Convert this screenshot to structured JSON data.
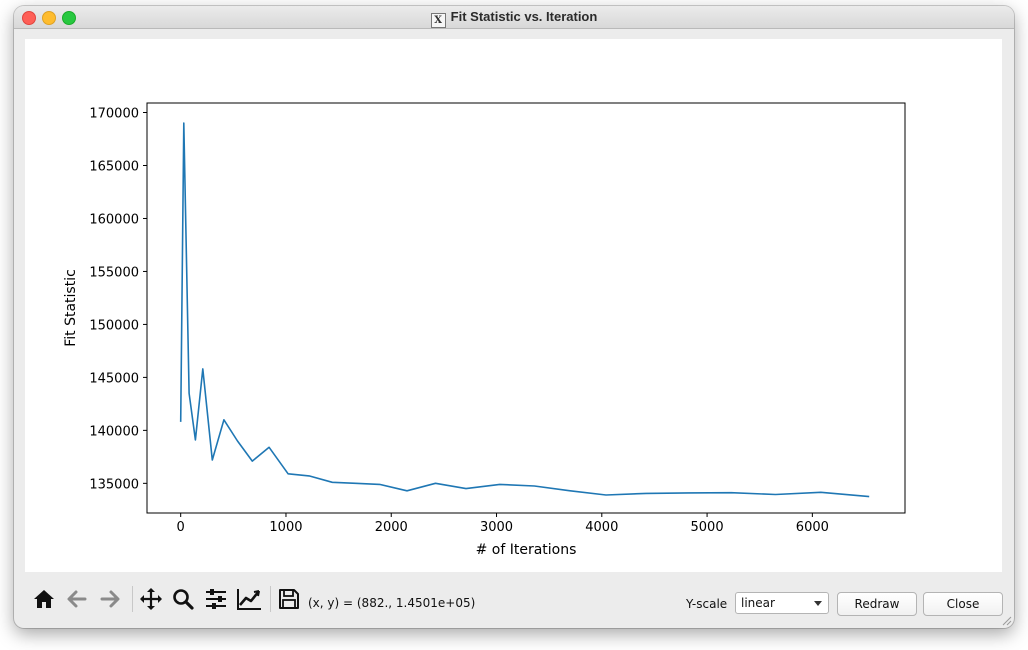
{
  "window": {
    "title": "Fit Statistic vs. Iteration",
    "title_icon": "x11-icon"
  },
  "toolbar": {
    "buttons": [
      {
        "name": "home-button",
        "icon": "home-icon"
      },
      {
        "name": "back-button",
        "icon": "arrow-left-icon"
      },
      {
        "name": "forward-button",
        "icon": "arrow-right-icon"
      },
      {
        "name": "pan-button",
        "icon": "move-icon"
      },
      {
        "name": "zoom-button",
        "icon": "magnifier-icon"
      },
      {
        "name": "subplots-button",
        "icon": "sliders-icon"
      },
      {
        "name": "customize-button",
        "icon": "chart-line-icon"
      },
      {
        "name": "save-button",
        "icon": "floppy-disk-icon"
      }
    ],
    "coords": "(x, y) = (882., 1.4501e+05)",
    "yscale_label": "Y-scale",
    "yscale_value": "linear",
    "redraw_label": "Redraw",
    "close_label": "Close"
  },
  "chart_data": {
    "type": "line",
    "title": "",
    "xlabel": "# of Iterations",
    "ylabel": "Fit Statistic",
    "xlim": [
      -320,
      6880
    ],
    "ylim": [
      132200,
      170900
    ],
    "xticks": [
      0,
      1000,
      2000,
      3000,
      4000,
      5000,
      6000
    ],
    "yticks": [
      135000,
      140000,
      145000,
      150000,
      155000,
      160000,
      165000,
      170000
    ],
    "grid": false,
    "color": "#1f77b4",
    "series": [
      {
        "x": [
          0,
          30,
          80,
          140,
          210,
          300,
          410,
          540,
          680,
          840,
          1020,
          1220,
          1440,
          1660,
          1890,
          2150,
          2420,
          2710,
          3030,
          3360,
          3700,
          4040,
          4420,
          4820,
          5230,
          5650,
          6080,
          6540
        ],
        "y": [
          140800,
          169000,
          143500,
          139100,
          145800,
          137200,
          141000,
          139000,
          137100,
          138400,
          135900,
          135700,
          135100,
          135000,
          134900,
          134300,
          135000,
          134500,
          134900,
          134750,
          134300,
          133900,
          134050,
          134100,
          134120,
          133950,
          134150,
          133750
        ]
      }
    ]
  }
}
